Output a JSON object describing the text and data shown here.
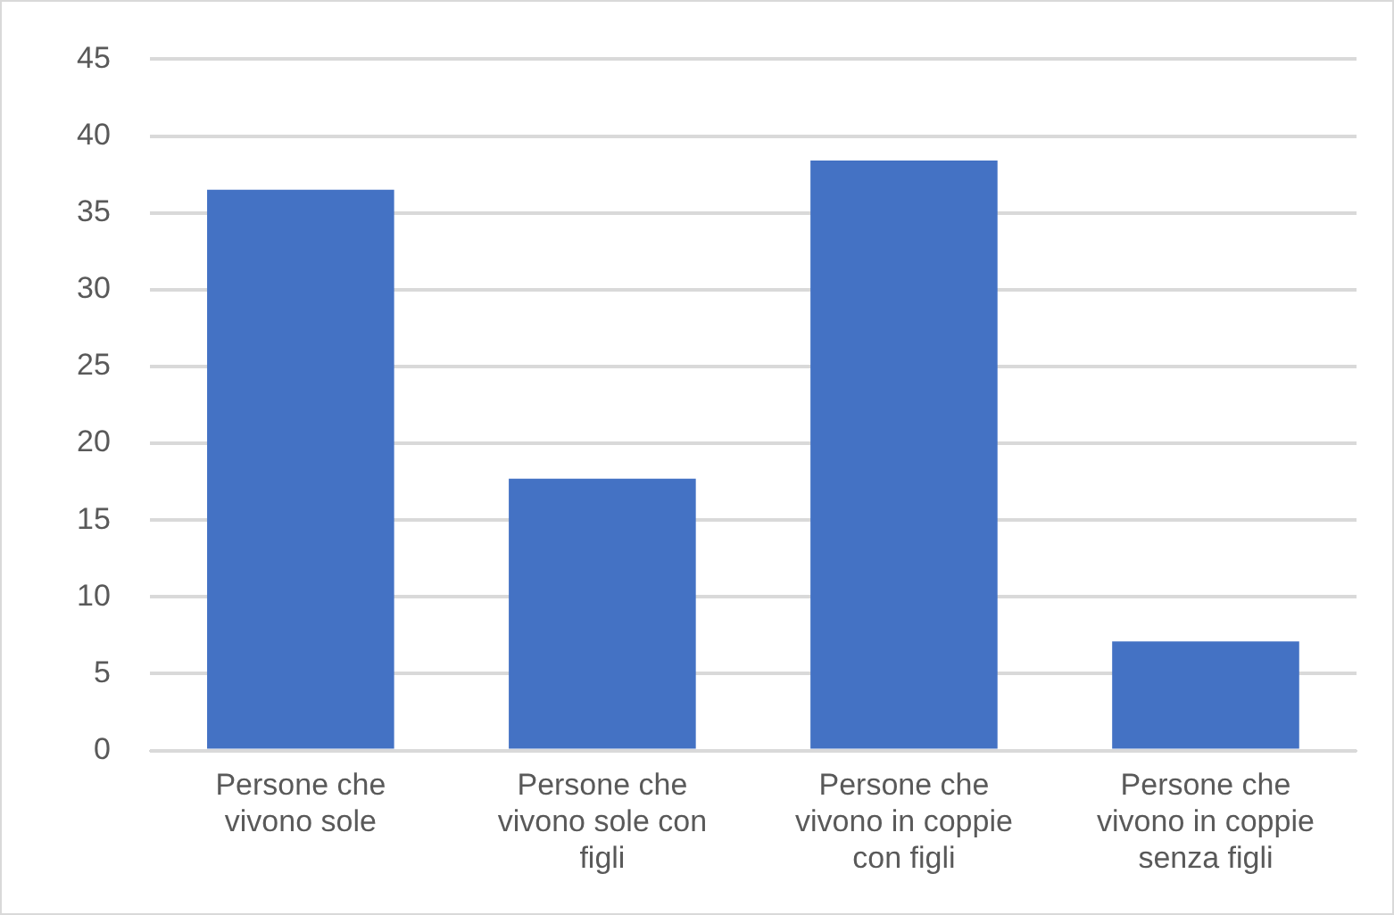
{
  "chart_data": {
    "type": "bar",
    "categories": [
      "Persone che vivono sole",
      "Persone che vivono sole con figli",
      "Persone che vivono in coppie con figli",
      "Persone che vivono in coppie senza figli"
    ],
    "values": [
      36.5,
      17.7,
      38.4,
      7.1
    ],
    "color": "#4472c4",
    "ylim": [
      0,
      45
    ],
    "yticks": [
      0,
      5,
      10,
      15,
      20,
      25,
      30,
      35,
      40,
      45
    ],
    "grid": "y",
    "legend": false
  }
}
